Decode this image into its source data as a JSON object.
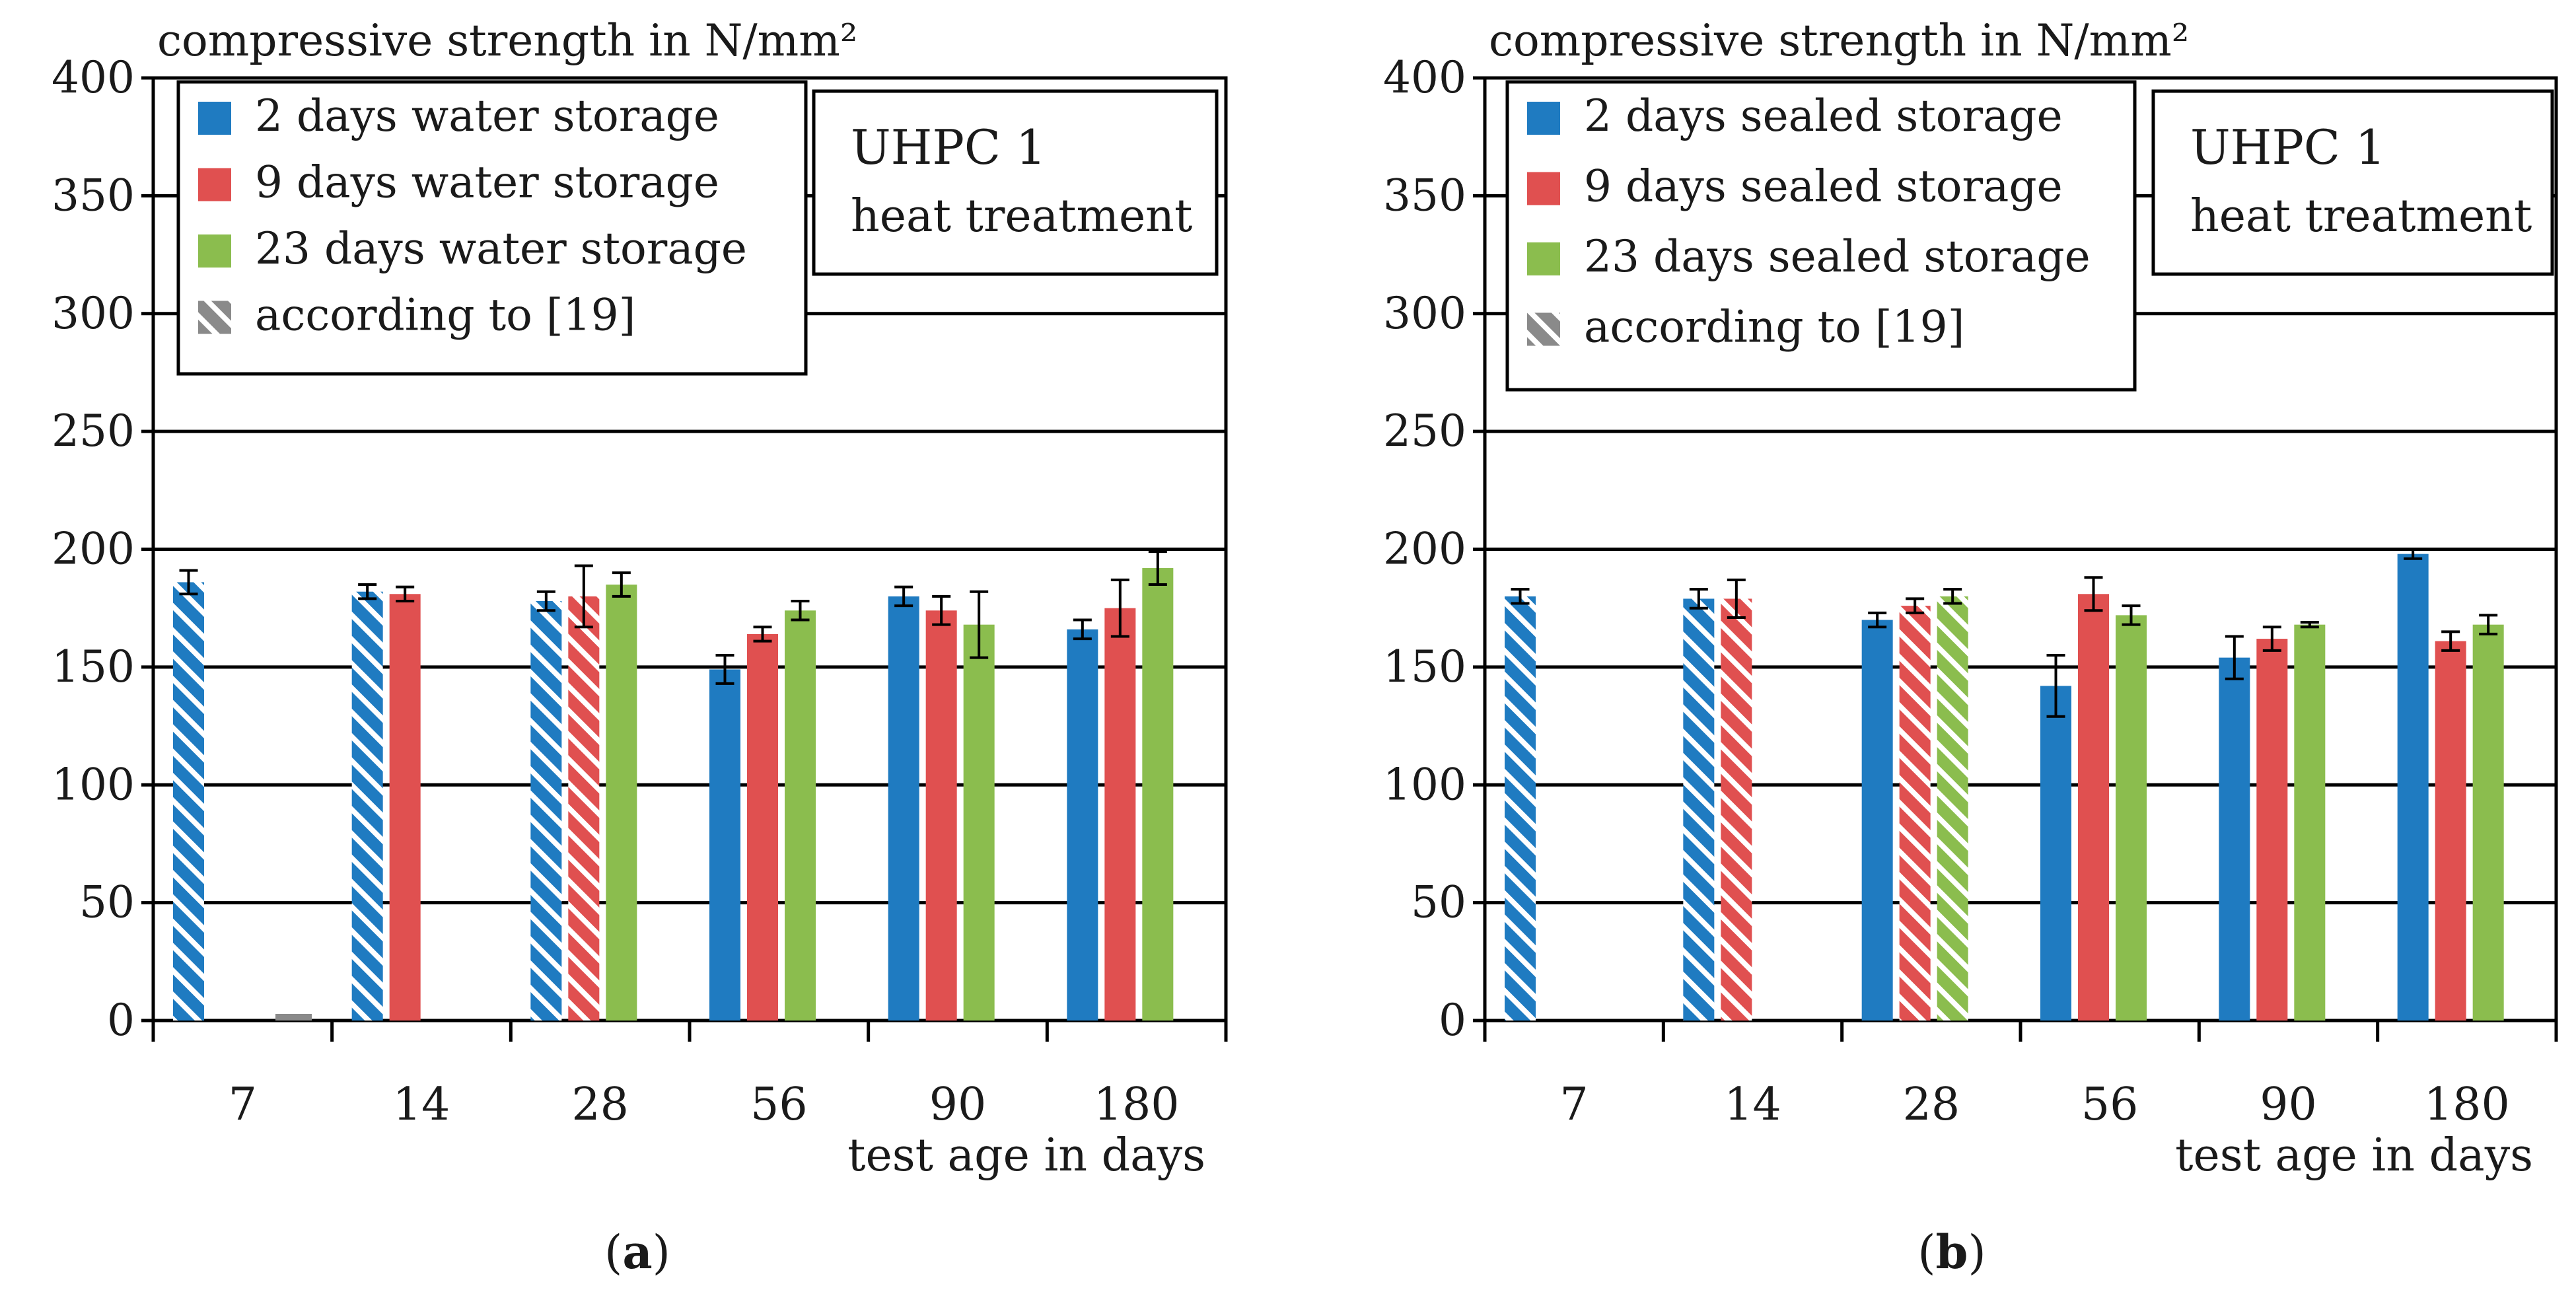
{
  "figure_labels": [
    "(a)",
    "(b)"
  ],
  "colors": {
    "d2": "#1f7bc1",
    "d9": "#e05050",
    "d23": "#8bbd4e",
    "ref": "#8a8a8a"
  },
  "chart_data": [
    {
      "type": "bar",
      "panel": "a",
      "caption": "(a)",
      "ylabel": "compressive strength in N/mm²",
      "xlabel": "test age in days",
      "ylim": [
        0,
        400
      ],
      "yticks": [
        0,
        50,
        100,
        150,
        200,
        250,
        300,
        350,
        400
      ],
      "grid": true,
      "legend_position": "top-left",
      "annotation_lines": [
        "UHPC 1",
        "heat treatment"
      ],
      "categories": [
        "7",
        "14",
        "28",
        "56",
        "90",
        "180"
      ],
      "series": [
        {
          "name": "2 days water storage",
          "color_key": "d2",
          "values": [
            186,
            182,
            178,
            149,
            180,
            166
          ],
          "errors": [
            5,
            3,
            4,
            6,
            4,
            4
          ],
          "hatched": [
            true,
            true,
            true,
            false,
            false,
            false
          ]
        },
        {
          "name": "9 days water storage",
          "color_key": "d9",
          "values": [
            null,
            181,
            180,
            164,
            174,
            175
          ],
          "errors": [
            null,
            3,
            13,
            3,
            6,
            12
          ],
          "hatched": [
            false,
            false,
            true,
            false,
            false,
            false
          ]
        },
        {
          "name": "23 days water storage",
          "color_key": "d23",
          "values": [
            null,
            null,
            185,
            174,
            168,
            192
          ],
          "errors": [
            null,
            null,
            5,
            4,
            14,
            7
          ],
          "hatched": [
            false,
            false,
            false,
            false,
            false,
            false
          ]
        }
      ],
      "legend": [
        {
          "label": "2 days water storage",
          "color_key": "d2",
          "hatched": false
        },
        {
          "label": "9 days water storage",
          "color_key": "d9",
          "hatched": false
        },
        {
          "label": "23 days water storage",
          "color_key": "d23",
          "hatched": false
        },
        {
          "label": "according to [19]",
          "color_key": "ref",
          "hatched": true
        }
      ]
    },
    {
      "type": "bar",
      "panel": "b",
      "caption": "(b)",
      "ylabel": "compressive strength in N/mm²",
      "xlabel": "test age in days",
      "ylim": [
        0,
        400
      ],
      "yticks": [
        0,
        50,
        100,
        150,
        200,
        250,
        300,
        350,
        400
      ],
      "grid": true,
      "legend_position": "top-left",
      "annotation_lines": [
        "UHPC 1",
        "heat treatment"
      ],
      "categories": [
        "7",
        "14",
        "28",
        "56",
        "90",
        "180"
      ],
      "series": [
        {
          "name": "2 days sealed storage",
          "color_key": "d2",
          "values": [
            180,
            179,
            170,
            142,
            154,
            198
          ],
          "errors": [
            3,
            4,
            3,
            13,
            9,
            2
          ],
          "hatched": [
            true,
            true,
            false,
            false,
            false,
            false
          ]
        },
        {
          "name": "9 days sealed storage",
          "color_key": "d9",
          "values": [
            null,
            179,
            176,
            181,
            162,
            161
          ],
          "errors": [
            null,
            8,
            3,
            7,
            5,
            4
          ],
          "hatched": [
            false,
            true,
            true,
            false,
            false,
            false
          ]
        },
        {
          "name": "23 days sealed storage",
          "color_key": "d23",
          "values": [
            null,
            null,
            180,
            172,
            168,
            168
          ],
          "errors": [
            null,
            null,
            3,
            4,
            1,
            4
          ],
          "hatched": [
            false,
            false,
            true,
            false,
            false,
            false
          ]
        }
      ],
      "legend": [
        {
          "label": "2 days sealed storage",
          "color_key": "d2",
          "hatched": false
        },
        {
          "label": "9 days sealed storage",
          "color_key": "d9",
          "hatched": false
        },
        {
          "label": "23 days sealed storage",
          "color_key": "d23",
          "hatched": false
        },
        {
          "label": "according to [19]",
          "color_key": "ref",
          "hatched": true
        }
      ]
    }
  ]
}
